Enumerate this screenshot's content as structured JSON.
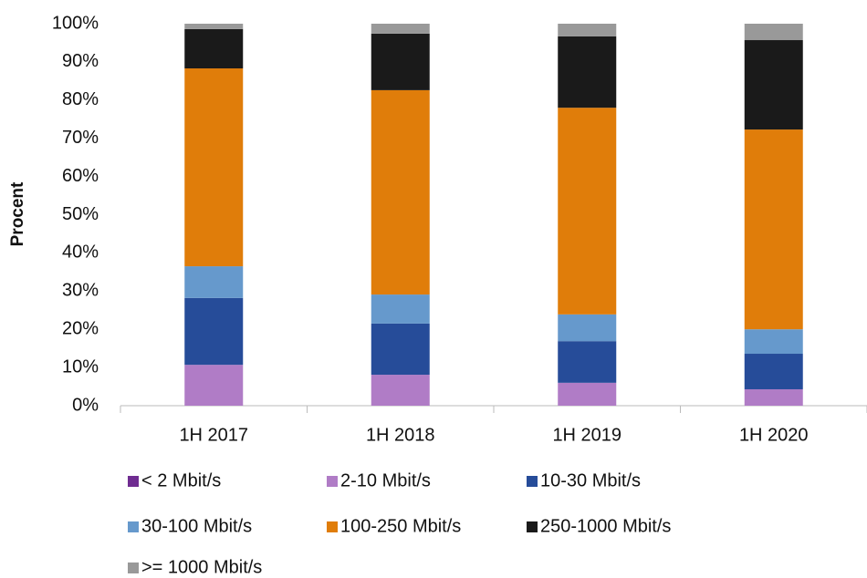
{
  "chart_data": {
    "type": "stacked_bar",
    "y_label": "Procent",
    "categories": [
      "1H 2017",
      "1H 2018",
      "1H 2019",
      "1H 2020"
    ],
    "series": [
      {
        "name": "< 2 Mbit/s",
        "color": "#6f2c91",
        "values": [
          0,
          0,
          0,
          0
        ]
      },
      {
        "name": "2-10 Mbit/s",
        "color": "#b07cc6",
        "values": [
          10.7,
          8.1,
          6.0,
          4.3
        ]
      },
      {
        "name": "10-30 Mbit/s",
        "color": "#264c99",
        "values": [
          17.5,
          13.4,
          10.9,
          9.3
        ]
      },
      {
        "name": "30-100 Mbit/s",
        "color": "#6699cc",
        "values": [
          8.3,
          7.6,
          7.0,
          6.4
        ]
      },
      {
        "name": "100-250 Mbit/s",
        "color": "#e07d0a",
        "values": [
          51.8,
          53.5,
          54.1,
          52.3
        ]
      },
      {
        "name": "250-1000 Mbit/s",
        "color": "#1a1a1a",
        "values": [
          10.3,
          14.8,
          18.7,
          23.4
        ]
      },
      {
        "name": ">= 1000 Mbit/s",
        "color": "#999999",
        "values": [
          1.4,
          2.6,
          3.3,
          4.3
        ]
      }
    ],
    "ylim": [
      0,
      100
    ],
    "yticks": [
      {
        "value": 0,
        "label": "0%"
      },
      {
        "value": 10,
        "label": "10%"
      },
      {
        "value": 20,
        "label": "20%"
      },
      {
        "value": 30,
        "label": "30%"
      },
      {
        "value": 40,
        "label": "40%"
      },
      {
        "value": 50,
        "label": "50%"
      },
      {
        "value": 60,
        "label": "60%"
      },
      {
        "value": 70,
        "label": "70%"
      },
      {
        "value": 80,
        "label": "80%"
      },
      {
        "value": 90,
        "label": "90%"
      },
      {
        "value": 100,
        "label": "100%"
      }
    ]
  }
}
